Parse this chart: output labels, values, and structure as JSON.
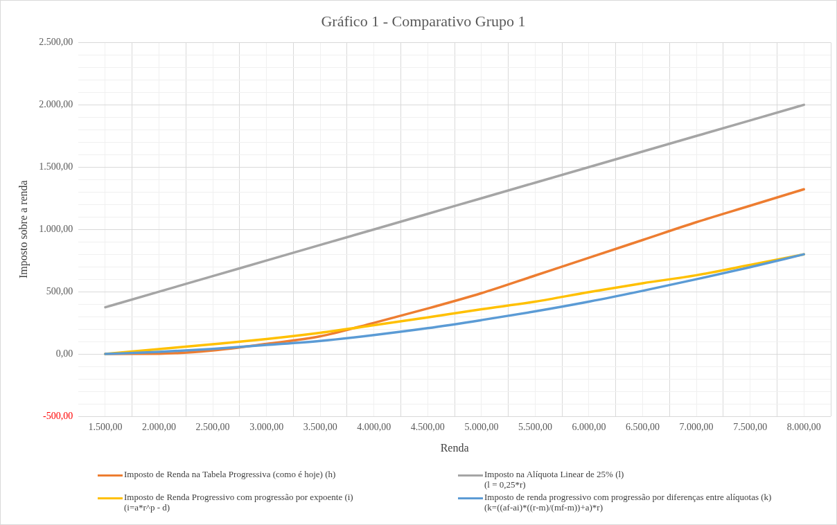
{
  "chart_data": {
    "type": "line",
    "title": "Gráfico 1 - Comparativo Grupo 1",
    "xlabel": "Renda",
    "ylabel": "Imposto sobre a renda",
    "x": [
      1500,
      2000,
      2500,
      3000,
      3500,
      4000,
      4500,
      5000,
      5500,
      6000,
      6500,
      7000,
      7500,
      8000
    ],
    "series": [
      {
        "name": "Imposto de Renda na Tabela Progressiva (como é hoje) (h)",
        "color": "#ed7d31",
        "values": [
          0,
          2,
          28,
          81,
          142,
          250,
          365,
          488,
          630,
          772,
          915,
          1058,
          1190,
          1322
        ]
      },
      {
        "name": "Imposto na Alíquota Linear de 25% (l)\n(l = 0,25*r)",
        "color": "#a5a5a5",
        "values": [
          375,
          500,
          625,
          750,
          875,
          1000,
          1125,
          1250,
          1375,
          1500,
          1625,
          1750,
          1875,
          2000
        ]
      },
      {
        "name": "Imposto de Renda Progressivo com progressão por expoente (i)\n(i=a*r^p - d)",
        "color": "#ffc000",
        "values": [
          0,
          39,
          78,
          120,
          170,
          231,
          294,
          359,
          420,
          497,
          568,
          632,
          715,
          800
        ]
      },
      {
        "name": "Imposto de renda progressivo com progressão por diferenças entre alíquotas (k)\n(k=((af-ai)*((r-m)/(mf-m))+a)*r)",
        "color": "#5b9bd5",
        "values": [
          0,
          17,
          41,
          72,
          105,
          152,
          207,
          272,
          342,
          420,
          507,
          600,
          697,
          800
        ]
      }
    ],
    "xlim": [
      1250,
      8250
    ],
    "xticks": [
      {
        "value": 1500,
        "label": "1.500,00"
      },
      {
        "value": 1750,
        "label": null
      },
      {
        "value": 2000,
        "label": "2.000,00"
      },
      {
        "value": 2250,
        "label": null
      },
      {
        "value": 2500,
        "label": "2.500,00"
      },
      {
        "value": 2750,
        "label": null
      },
      {
        "value": 3000,
        "label": "3.000,00"
      },
      {
        "value": 3250,
        "label": null
      },
      {
        "value": 3500,
        "label": "3.500,00"
      },
      {
        "value": 3750,
        "label": null
      },
      {
        "value": 4000,
        "label": "4.000,00"
      },
      {
        "value": 4250,
        "label": null
      },
      {
        "value": 4500,
        "label": "4.500,00"
      },
      {
        "value": 4750,
        "label": null
      },
      {
        "value": 5000,
        "label": "5.000,00"
      },
      {
        "value": 5250,
        "label": null
      },
      {
        "value": 5500,
        "label": "5.500,00"
      },
      {
        "value": 5750,
        "label": null
      },
      {
        "value": 6000,
        "label": "6.000,00"
      },
      {
        "value": 6250,
        "label": null
      },
      {
        "value": 6500,
        "label": "6.500,00"
      },
      {
        "value": 6750,
        "label": null
      },
      {
        "value": 7000,
        "label": "7.000,00"
      },
      {
        "value": 7250,
        "label": null
      },
      {
        "value": 7500,
        "label": "7.500,00"
      },
      {
        "value": 7750,
        "label": null
      },
      {
        "value": 8000,
        "label": "8.000,00"
      },
      {
        "value": 8250,
        "label": null
      }
    ],
    "ylim": [
      -500,
      2500
    ],
    "yticks": [
      {
        "value": -500,
        "label": "-500,00"
      },
      {
        "value": -400,
        "label": null
      },
      {
        "value": -300,
        "label": null
      },
      {
        "value": -200,
        "label": null
      },
      {
        "value": -100,
        "label": null
      },
      {
        "value": 0,
        "label": "0,00"
      },
      {
        "value": 100,
        "label": null
      },
      {
        "value": 200,
        "label": null
      },
      {
        "value": 300,
        "label": null
      },
      {
        "value": 400,
        "label": null
      },
      {
        "value": 500,
        "label": "500,00"
      },
      {
        "value": 600,
        "label": null
      },
      {
        "value": 700,
        "label": null
      },
      {
        "value": 800,
        "label": null
      },
      {
        "value": 900,
        "label": null
      },
      {
        "value": 1000,
        "label": "1.000,00"
      },
      {
        "value": 1100,
        "label": null
      },
      {
        "value": 1200,
        "label": null
      },
      {
        "value": 1300,
        "label": null
      },
      {
        "value": 1400,
        "label": null
      },
      {
        "value": 1500,
        "label": "1.500,00"
      },
      {
        "value": 1600,
        "label": null
      },
      {
        "value": 1700,
        "label": null
      },
      {
        "value": 1800,
        "label": null
      },
      {
        "value": 1900,
        "label": null
      },
      {
        "value": 2000,
        "label": "2.000,00"
      },
      {
        "value": 2100,
        "label": null
      },
      {
        "value": 2200,
        "label": null
      },
      {
        "value": 2300,
        "label": null
      },
      {
        "value": 2400,
        "label": null
      },
      {
        "value": 2500,
        "label": "2.500,00"
      }
    ],
    "grid": true,
    "legend": "bottom",
    "marker": "none",
    "line_style": "solid"
  }
}
